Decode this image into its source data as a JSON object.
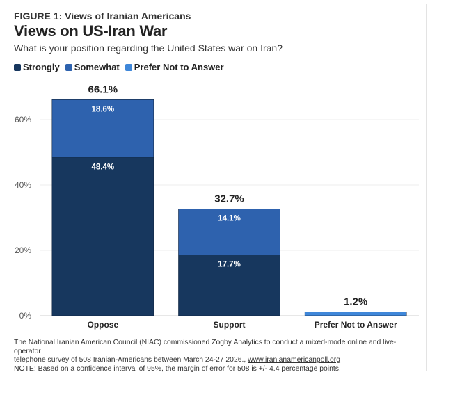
{
  "header": {
    "figure_label": "FIGURE 1: Views of Iranian Americans",
    "title": "Views on US-Iran War",
    "subtitle": "What is your position regarding the United States war on Iran?"
  },
  "legend": [
    {
      "label": "Strongly",
      "color": "#17375e"
    },
    {
      "label": "Somewhat",
      "color": "#2e62ae"
    },
    {
      "label": "Prefer Not to Answer",
      "color": "#3f87d9"
    }
  ],
  "chart_data": {
    "type": "bar",
    "stacked": true,
    "categories": [
      "Oppose",
      "Support",
      "Prefer Not to Answer"
    ],
    "series": [
      {
        "name": "Strongly",
        "values": [
          48.4,
          18.6,
          0
        ],
        "color": "#17375e"
      },
      {
        "name": "Somewhat",
        "values": [
          17.7,
          14.1,
          0
        ],
        "color": "#2e62ae"
      },
      {
        "name": "Prefer Not to Answer",
        "values": [
          0,
          0,
          1.2
        ],
        "color": "#3f87d9"
      }
    ],
    "segment_labels": [
      [
        "48.4%",
        "17.7%",
        null
      ],
      [
        "18.6%",
        "14.1%",
        null
      ],
      [
        null,
        null,
        null
      ]
    ],
    "totals": [
      "66.1%",
      "32.7%",
      "1.2%"
    ],
    "y_ticks": [
      {
        "value": 0,
        "label": "0%"
      },
      {
        "value": 20,
        "label": "20%"
      },
      {
        "value": 40,
        "label": "40%"
      },
      {
        "value": 60,
        "label": "60%"
      }
    ],
    "ylim": [
      0,
      68
    ],
    "grid": true,
    "legend_position": "top-left",
    "xlabel": "",
    "ylabel": ""
  },
  "footnote": {
    "line1": "The National Iranian American Council (NIAC) commissioned Zogby Analytics to conduct a mixed-mode online and live-operator",
    "line2_prefix": "telephone survey of 508 Iranian-Americans between March 24-27 2026., ",
    "link": "www.iranianamericanpoll.org",
    "note": "NOTE: Based on a confidence interval of 95%, the margin of error for 508 is +/- 4.4 percentage points."
  }
}
